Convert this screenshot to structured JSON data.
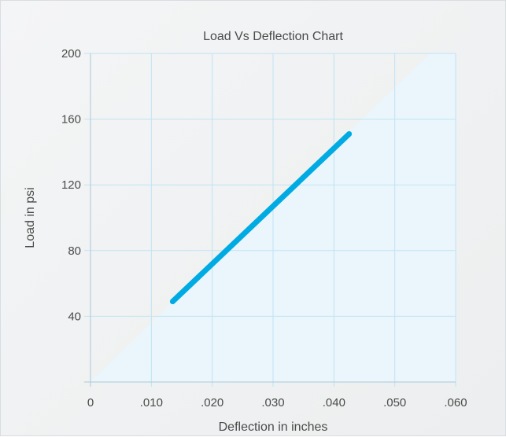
{
  "chart_data": {
    "type": "line",
    "title": "Load Vs Deflection Chart",
    "xlabel": "Deflection in inches",
    "ylabel": "Load in psi",
    "xlim": [
      0,
      0.06
    ],
    "ylim": [
      0,
      200
    ],
    "x_ticks": [
      0,
      0.01,
      0.02,
      0.03,
      0.04,
      0.05,
      0.06
    ],
    "x_tick_labels": [
      "0",
      ".010",
      ".020",
      ".030",
      ".040",
      ".050",
      ".060"
    ],
    "y_ticks": [
      40,
      80,
      120,
      160,
      200
    ],
    "y_tick_labels": [
      "40",
      "80",
      "120",
      "160",
      "200"
    ],
    "grid": true,
    "series": [
      {
        "x": [
          0.0135,
          0.0425
        ],
        "y": [
          49,
          151
        ],
        "color": "#00abe3"
      }
    ],
    "colors": {
      "line": "#00abe3",
      "grid": "#bfe3f3",
      "shade": "#eaf6fc",
      "text": "#4a4a4a"
    }
  }
}
